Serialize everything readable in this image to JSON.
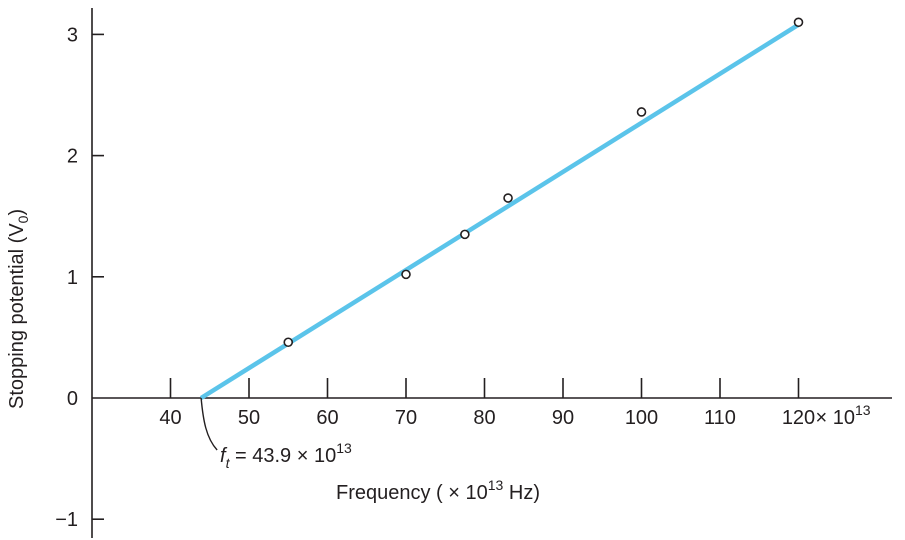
{
  "chart_data": {
    "type": "scatter",
    "xlabel": "Frequency ( × 10",
    "xlabel_exp": "13",
    "xlabel_unit": " Hz)",
    "ylabel": "Stopping potential (V",
    "ylabel_sub": "0",
    "ylabel_close": ")",
    "xlim": [
      30,
      130
    ],
    "ylim": [
      -1.2,
      3.2
    ],
    "x_ticks": [
      {
        "value": 40,
        "label": "40"
      },
      {
        "value": 50,
        "label": "50"
      },
      {
        "value": 60,
        "label": "60"
      },
      {
        "value": 70,
        "label": "70"
      },
      {
        "value": 80,
        "label": "80"
      },
      {
        "value": 90,
        "label": "90"
      },
      {
        "value": 100,
        "label": "100"
      },
      {
        "value": 110,
        "label": "110"
      },
      {
        "value": 120,
        "label": "120"
      }
    ],
    "x_tick_suffix": " × 10",
    "x_tick_suffix_exp": "13",
    "y_ticks": [
      {
        "value": -1,
        "label": "−1"
      },
      {
        "value": 0,
        "label": "0"
      },
      {
        "value": 1,
        "label": "1"
      },
      {
        "value": 2,
        "label": "2"
      },
      {
        "value": 3,
        "label": "3"
      }
    ],
    "series": [
      {
        "x": [
          55,
          70,
          77.5,
          83,
          100,
          120
        ],
        "y": [
          0.46,
          1.02,
          1.35,
          1.65,
          2.36,
          3.1
        ]
      }
    ],
    "fit_line": {
      "x": [
        43.9,
        120
      ],
      "y": [
        0,
        3.08
      ],
      "color": "#5bc4ea"
    },
    "annotation": {
      "symbol": "f",
      "subscript": "t",
      "text": " = 43.9 × 10",
      "exp": "13",
      "x": 43.9,
      "y": 0
    },
    "colors": {
      "axis": "#231f20",
      "fit": "#5bc4ea",
      "marker": "#231f20"
    }
  }
}
